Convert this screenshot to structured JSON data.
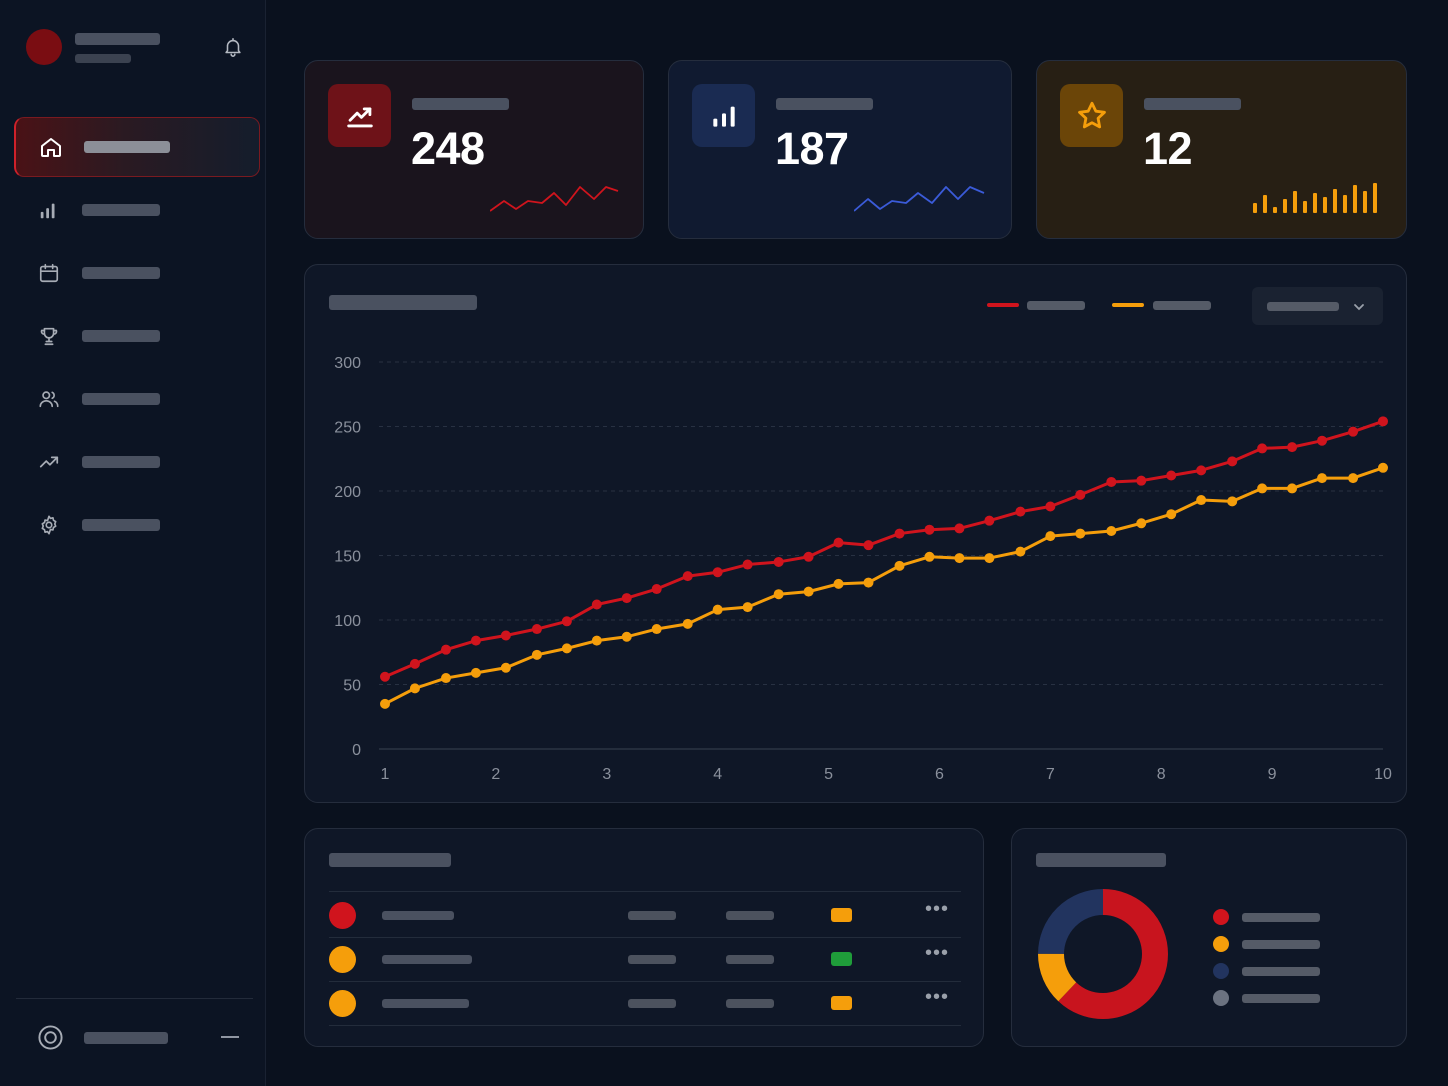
{
  "colors": {
    "accent_red": "#d0141d",
    "accent_orange": "#f59e0b",
    "accent_blue": "#3b5bd9",
    "accent_green": "#1f9d3a",
    "muted": "#505664"
  },
  "sidebar": {
    "icons": [
      "home-icon",
      "bar-chart-icon",
      "calendar-icon",
      "trophy-icon",
      "users-icon",
      "trending-icon",
      "settings-icon"
    ],
    "footer_icon": "target-icon"
  },
  "stats": [
    {
      "value": "248",
      "icon": "trending-up-icon",
      "accent": "#d0141d"
    },
    {
      "value": "187",
      "icon": "bar-chart-icon",
      "accent": "#3b5bd9"
    },
    {
      "value": "12",
      "icon": "star-icon",
      "accent": "#f59e0b"
    }
  ],
  "chart_data": {
    "type": "line",
    "x_ticks": [
      1,
      2,
      3,
      4,
      5,
      6,
      7,
      8,
      9,
      10
    ],
    "y_ticks": [
      0,
      50,
      100,
      150,
      200,
      250,
      300
    ],
    "ylim": [
      0,
      300
    ],
    "xlim": [
      1,
      10
    ],
    "grid": true,
    "legend_position": "top-right",
    "series": [
      {
        "color": "#d0141d",
        "points": [
          [
            1,
            56
          ],
          [
            1.27,
            66
          ],
          [
            1.55,
            77
          ],
          [
            1.82,
            84
          ],
          [
            2.09,
            88
          ],
          [
            2.37,
            93
          ],
          [
            2.64,
            99
          ],
          [
            2.91,
            112
          ],
          [
            3.18,
            117
          ],
          [
            3.45,
            124
          ],
          [
            3.73,
            134
          ],
          [
            4,
            137
          ],
          [
            4.27,
            143
          ],
          [
            4.55,
            145
          ],
          [
            4.82,
            149
          ],
          [
            5.09,
            160
          ],
          [
            5.36,
            158
          ],
          [
            5.64,
            167
          ],
          [
            5.91,
            170
          ],
          [
            6.18,
            171
          ],
          [
            6.45,
            177
          ],
          [
            6.73,
            184
          ],
          [
            7,
            188
          ],
          [
            7.27,
            197
          ],
          [
            7.55,
            207
          ],
          [
            7.82,
            208
          ],
          [
            8.09,
            212
          ],
          [
            8.36,
            216
          ],
          [
            8.64,
            223
          ],
          [
            8.91,
            233
          ],
          [
            9.18,
            234
          ],
          [
            9.45,
            239
          ],
          [
            9.73,
            246
          ],
          [
            10,
            254
          ]
        ]
      },
      {
        "color": "#f59e0b",
        "points": [
          [
            1,
            35
          ],
          [
            1.27,
            47
          ],
          [
            1.55,
            55
          ],
          [
            1.82,
            59
          ],
          [
            2.09,
            63
          ],
          [
            2.37,
            73
          ],
          [
            2.64,
            78
          ],
          [
            2.91,
            84
          ],
          [
            3.18,
            87
          ],
          [
            3.45,
            93
          ],
          [
            3.73,
            97
          ],
          [
            4,
            108
          ],
          [
            4.27,
            110
          ],
          [
            4.55,
            120
          ],
          [
            4.82,
            122
          ],
          [
            5.09,
            128
          ],
          [
            5.36,
            129
          ],
          [
            5.64,
            142
          ],
          [
            5.91,
            149
          ],
          [
            6.18,
            148
          ],
          [
            6.45,
            148
          ],
          [
            6.73,
            153
          ],
          [
            7,
            165
          ],
          [
            7.27,
            167
          ],
          [
            7.55,
            169
          ],
          [
            7.82,
            175
          ],
          [
            8.09,
            182
          ],
          [
            8.36,
            193
          ],
          [
            8.64,
            192
          ],
          [
            8.91,
            202
          ],
          [
            9.18,
            202
          ],
          [
            9.45,
            210
          ],
          [
            9.73,
            210
          ],
          [
            10,
            218
          ]
        ]
      }
    ]
  },
  "table": {
    "rows": [
      {
        "dot": "#d0141d",
        "chip": "#f59e0b"
      },
      {
        "dot": "#f59e0b",
        "chip": "#1f9d3a"
      },
      {
        "dot": "#f59e0b",
        "chip": "#f59e0b"
      }
    ]
  },
  "donut": {
    "segments": [
      {
        "color": "#c8141e",
        "value": 0.62
      },
      {
        "color": "#f59e0b",
        "value": 0.13
      },
      {
        "color": "#22345f",
        "value": 0.25
      }
    ],
    "legend_colors": [
      "#d0141d",
      "#f59e0b",
      "#22345f",
      "#6b7280"
    ]
  }
}
